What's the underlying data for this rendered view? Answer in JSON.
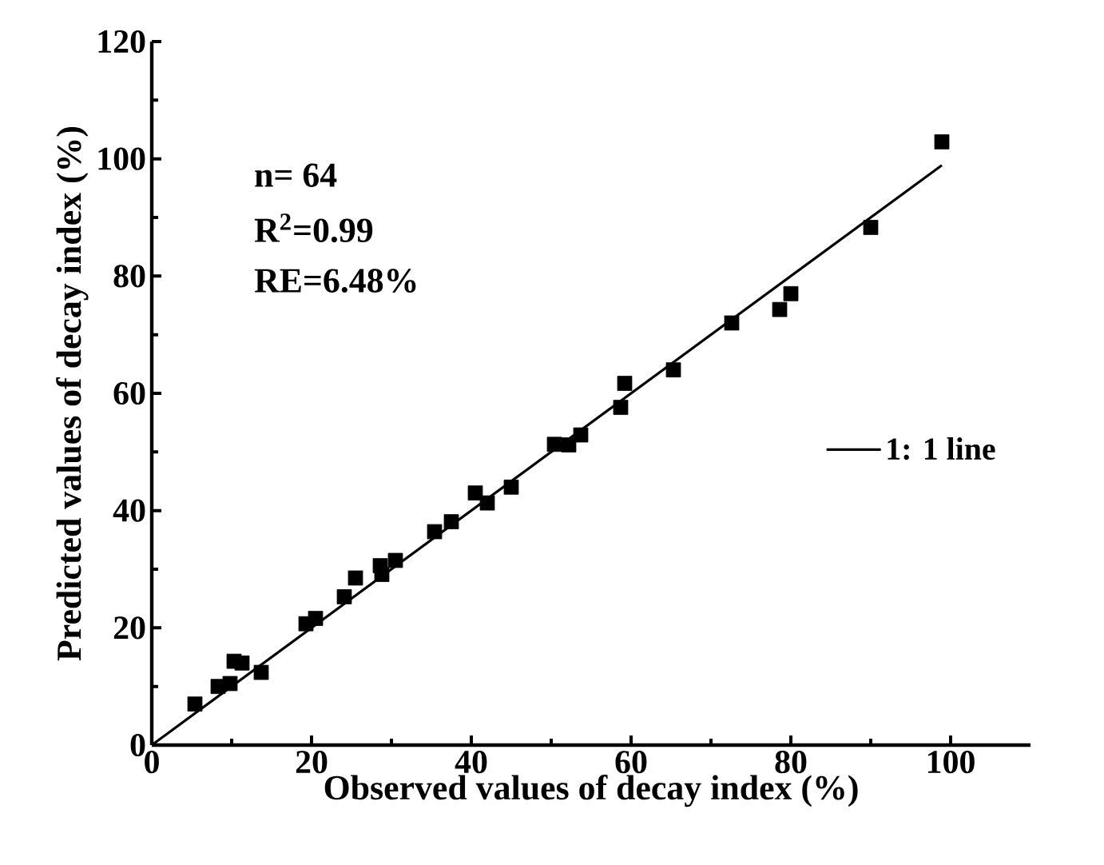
{
  "chart_data": {
    "type": "scatter",
    "xlabel": "Observed values of decay index (%)",
    "ylabel": "Predicted values of decay index (%)",
    "xlim": [
      0,
      110
    ],
    "ylim": [
      0,
      120
    ],
    "xticks": [
      0,
      20,
      40,
      60,
      80,
      100
    ],
    "yticks": [
      0,
      20,
      40,
      60,
      80,
      100,
      120
    ],
    "legend": "right",
    "grid": false,
    "annotations": [
      "n= 64",
      "R$^{2}$=0.99",
      "RE=6.48%"
    ],
    "series": [
      {
        "color": "#000000",
        "marker": "square",
        "x": [
          5.4,
          8.3,
          9.8,
          10.3,
          11.3,
          13.7,
          19.3,
          20.5,
          24.1,
          25.5,
          28.6,
          28.8,
          30.5,
          35.4,
          37.5,
          40.5,
          42.0,
          45.0,
          50.4,
          52.2,
          53.7,
          58.7,
          59.2,
          65.3,
          72.6,
          78.6,
          80.0,
          90.0,
          98.9
        ],
        "values": [
          7.0,
          10.0,
          10.5,
          14.3,
          14.0,
          12.4,
          20.7,
          21.6,
          25.3,
          28.5,
          30.6,
          29.1,
          31.5,
          36.4,
          38.1,
          43.0,
          41.3,
          44.0,
          51.3,
          51.2,
          52.9,
          57.6,
          61.7,
          64.0,
          72.0,
          74.3,
          77.0,
          88.3,
          102.9
        ]
      },
      {
        "type": "line",
        "name": "1: 1 line",
        "color": "#000000",
        "line_style": "solid",
        "x": [
          0,
          98.9
        ],
        "values": [
          0,
          98.9
        ]
      }
    ]
  }
}
